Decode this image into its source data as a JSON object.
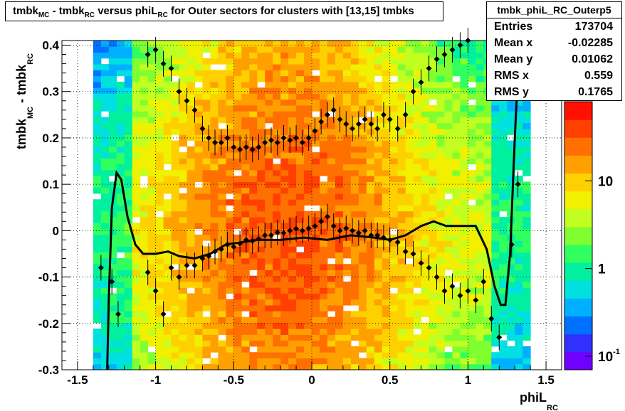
{
  "chart_data": {
    "type": "heatmap",
    "title": {
      "p1": "tmbk",
      "s1": "MC",
      "p2": " - tmbk",
      "s2": "RC",
      "p3": " versus phiL",
      "s3": "RC",
      "p4": " for Outer sectors for clusters with [13,15] tmbks"
    },
    "xlabel": {
      "main": "phiL",
      "sub": "RC"
    },
    "ylabel": {
      "part1": "tmbk",
      "sub1": "MC",
      "part2": " - tmbk",
      "sub2": "RC"
    },
    "xlim": [
      -1.6,
      1.6
    ],
    "ylim": [
      -0.3,
      0.41
    ],
    "x_ticks": [
      -1.5,
      -1,
      -0.5,
      0,
      0.5,
      1,
      1.5
    ],
    "x_tick_labels": [
      "-1.5",
      "-1",
      "-0.5",
      "0",
      "0.5",
      "1",
      "1.5"
    ],
    "y_ticks": [
      -0.3,
      -0.2,
      -0.1,
      0,
      0.1,
      0.2,
      0.3,
      0.4
    ],
    "y_tick_labels": [
      "-0.3",
      "-0.2",
      "-0.1",
      "0",
      "0.1",
      "0.2",
      "0.3",
      "0.4"
    ],
    "grid": true,
    "colorbar": {
      "scale": "log",
      "tick_labels": [
        {
          "base": "10",
          "exp": "-1",
          "value": 0.1
        },
        {
          "base": "1",
          "exp": "",
          "value": 1
        },
        {
          "base": "10",
          "exp": "",
          "value": 10
        }
      ],
      "range": [
        0.07,
        80
      ]
    },
    "stats": {
      "name": "tmbk_phiL_RC_Outerp5",
      "rows": [
        {
          "label": "Entries",
          "value": "173704"
        },
        {
          "label": "Mean x",
          "value": "-0.02285"
        },
        {
          "label": "Mean y",
          "value": "0.01062"
        },
        {
          "label": "RMS x",
          "value": "0.559"
        },
        {
          "label": "RMS y",
          "value": "0.1765"
        }
      ]
    },
    "profile_points": [
      {
        "x": -1.35,
        "y": -0.08
      },
      {
        "x": -1.28,
        "y": -0.11
      },
      {
        "x": -1.24,
        "y": -0.18
      },
      {
        "x": -1.05,
        "y": -0.09
      },
      {
        "x": -1.0,
        "y": -0.13
      },
      {
        "x": -0.95,
        "y": -0.18
      },
      {
        "x": -0.9,
        "y": -0.08
      },
      {
        "x": -0.85,
        "y": -0.1
      },
      {
        "x": -0.8,
        "y": -0.075
      },
      {
        "x": -0.75,
        "y": -0.075
      },
      {
        "x": -0.7,
        "y": -0.06
      },
      {
        "x": -0.66,
        "y": -0.055
      },
      {
        "x": -0.62,
        "y": -0.045
      },
      {
        "x": -0.58,
        "y": -0.04
      },
      {
        "x": -0.54,
        "y": -0.03
      },
      {
        "x": -0.5,
        "y": -0.035
      },
      {
        "x": -0.46,
        "y": -0.028
      },
      {
        "x": -0.42,
        "y": -0.02
      },
      {
        "x": -0.38,
        "y": -0.022
      },
      {
        "x": -0.34,
        "y": -0.018
      },
      {
        "x": -0.3,
        "y": -0.01
      },
      {
        "x": -0.26,
        "y": -0.01
      },
      {
        "x": -0.22,
        "y": -0.004
      },
      {
        "x": -0.18,
        "y": -0.005
      },
      {
        "x": -0.14,
        "y": 0.0
      },
      {
        "x": -0.1,
        "y": 0.004
      },
      {
        "x": -0.06,
        "y": 0.0
      },
      {
        "x": -0.02,
        "y": 0.005
      },
      {
        "x": 0.02,
        "y": 0.01
      },
      {
        "x": 0.06,
        "y": 0.02
      },
      {
        "x": 0.1,
        "y": 0.03
      },
      {
        "x": 0.14,
        "y": 0.01
      },
      {
        "x": 0.18,
        "y": 0.0
      },
      {
        "x": 0.22,
        "y": 0.005
      },
      {
        "x": 0.26,
        "y": 0.0
      },
      {
        "x": 0.3,
        "y": -0.005
      },
      {
        "x": 0.34,
        "y": 0.0
      },
      {
        "x": 0.38,
        "y": -0.01
      },
      {
        "x": 0.42,
        "y": -0.01
      },
      {
        "x": 0.46,
        "y": -0.015
      },
      {
        "x": 0.5,
        "y": -0.02
      },
      {
        "x": 0.55,
        "y": -0.025
      },
      {
        "x": 0.6,
        "y": -0.045
      },
      {
        "x": 0.65,
        "y": -0.05
      },
      {
        "x": 0.7,
        "y": -0.07
      },
      {
        "x": 0.75,
        "y": -0.08
      },
      {
        "x": 0.8,
        "y": -0.1
      },
      {
        "x": 0.85,
        "y": -0.13
      },
      {
        "x": 0.9,
        "y": -0.12
      },
      {
        "x": 0.95,
        "y": -0.14
      },
      {
        "x": 1.0,
        "y": -0.13
      },
      {
        "x": 1.05,
        "y": -0.15
      },
      {
        "x": 1.1,
        "y": -0.11
      },
      {
        "x": 1.15,
        "y": -0.19
      },
      {
        "x": 1.2,
        "y": -0.23
      },
      {
        "x": 1.28,
        "y": -0.03
      },
      {
        "x": 1.32,
        "y": 0.1
      }
    ],
    "upper_points": [
      {
        "x": -1.05,
        "y": 0.38
      },
      {
        "x": -1.0,
        "y": 0.39
      },
      {
        "x": -0.95,
        "y": 0.36
      },
      {
        "x": -0.9,
        "y": 0.35
      },
      {
        "x": -0.85,
        "y": 0.3
      },
      {
        "x": -0.8,
        "y": 0.28
      },
      {
        "x": -0.75,
        "y": 0.26
      },
      {
        "x": -0.7,
        "y": 0.22
      },
      {
        "x": -0.66,
        "y": 0.2
      },
      {
        "x": -0.62,
        "y": 0.19
      },
      {
        "x": -0.58,
        "y": 0.19
      },
      {
        "x": -0.54,
        "y": 0.2
      },
      {
        "x": -0.5,
        "y": 0.18
      },
      {
        "x": -0.46,
        "y": 0.175
      },
      {
        "x": -0.42,
        "y": 0.18
      },
      {
        "x": -0.38,
        "y": 0.175
      },
      {
        "x": -0.34,
        "y": 0.18
      },
      {
        "x": -0.3,
        "y": 0.19
      },
      {
        "x": -0.26,
        "y": 0.195
      },
      {
        "x": -0.22,
        "y": 0.19
      },
      {
        "x": -0.18,
        "y": 0.2
      },
      {
        "x": -0.14,
        "y": 0.195
      },
      {
        "x": -0.1,
        "y": 0.2
      },
      {
        "x": -0.06,
        "y": 0.19
      },
      {
        "x": -0.02,
        "y": 0.2
      },
      {
        "x": 0.02,
        "y": 0.215
      },
      {
        "x": 0.06,
        "y": 0.235
      },
      {
        "x": 0.1,
        "y": 0.25
      },
      {
        "x": 0.14,
        "y": 0.26
      },
      {
        "x": 0.18,
        "y": 0.24
      },
      {
        "x": 0.22,
        "y": 0.23
      },
      {
        "x": 0.26,
        "y": 0.22
      },
      {
        "x": 0.3,
        "y": 0.23
      },
      {
        "x": 0.34,
        "y": 0.24
      },
      {
        "x": 0.38,
        "y": 0.23
      },
      {
        "x": 0.42,
        "y": 0.22
      },
      {
        "x": 0.46,
        "y": 0.25
      },
      {
        "x": 0.5,
        "y": 0.24
      },
      {
        "x": 0.55,
        "y": 0.22
      },
      {
        "x": 0.6,
        "y": 0.25
      },
      {
        "x": 0.65,
        "y": 0.3
      },
      {
        "x": 0.7,
        "y": 0.32
      },
      {
        "x": 0.75,
        "y": 0.35
      },
      {
        "x": 0.8,
        "y": 0.37
      },
      {
        "x": 0.85,
        "y": 0.38
      },
      {
        "x": 0.9,
        "y": 0.39
      },
      {
        "x": 0.95,
        "y": 0.4
      },
      {
        "x": 1.0,
        "y": 0.41
      }
    ],
    "fit_curve": [
      {
        "x": -1.31,
        "y": -0.3
      },
      {
        "x": -1.3,
        "y": -0.15
      },
      {
        "x": -1.28,
        "y": 0.05
      },
      {
        "x": -1.25,
        "y": 0.125
      },
      {
        "x": -1.22,
        "y": 0.11
      },
      {
        "x": -1.18,
        "y": 0.03
      },
      {
        "x": -1.13,
        "y": -0.03
      },
      {
        "x": -1.08,
        "y": -0.05
      },
      {
        "x": -1.0,
        "y": -0.05
      },
      {
        "x": -0.92,
        "y": -0.045
      },
      {
        "x": -0.85,
        "y": -0.055
      },
      {
        "x": -0.75,
        "y": -0.06
      },
      {
        "x": -0.65,
        "y": -0.05
      },
      {
        "x": -0.55,
        "y": -0.03
      },
      {
        "x": -0.45,
        "y": -0.025
      },
      {
        "x": -0.35,
        "y": -0.02
      },
      {
        "x": -0.2,
        "y": -0.02
      },
      {
        "x": -0.05,
        "y": -0.015
      },
      {
        "x": 0.1,
        "y": -0.02
      },
      {
        "x": 0.25,
        "y": -0.01
      },
      {
        "x": 0.4,
        "y": -0.015
      },
      {
        "x": 0.5,
        "y": -0.02
      },
      {
        "x": 0.6,
        "y": -0.01
      },
      {
        "x": 0.7,
        "y": 0.01
      },
      {
        "x": 0.78,
        "y": 0.02
      },
      {
        "x": 0.86,
        "y": 0.01
      },
      {
        "x": 0.95,
        "y": 0.01
      },
      {
        "x": 1.05,
        "y": 0.01
      },
      {
        "x": 1.12,
        "y": -0.04
      },
      {
        "x": 1.17,
        "y": -0.12
      },
      {
        "x": 1.21,
        "y": -0.16
      },
      {
        "x": 1.24,
        "y": -0.16
      },
      {
        "x": 1.27,
        "y": -0.05
      },
      {
        "x": 1.3,
        "y": 0.2
      },
      {
        "x": 1.33,
        "y": 0.41
      }
    ]
  }
}
